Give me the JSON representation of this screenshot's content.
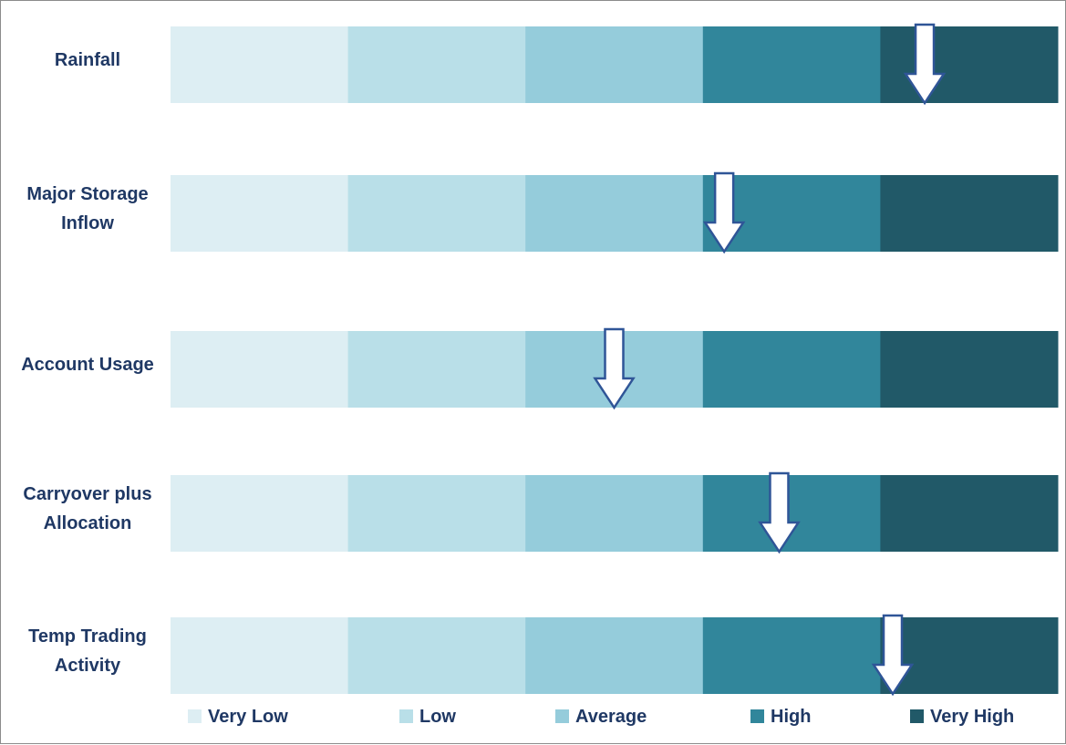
{
  "chart_data": {
    "type": "bar",
    "orientation": "horizontal-stacked",
    "title": "",
    "xlabel": "",
    "ylabel": "",
    "bands": [
      {
        "name": "Very Low",
        "color": "#ddeef3"
      },
      {
        "name": "Low",
        "color": "#b9dfe8"
      },
      {
        "name": "Average",
        "color": "#95ccdb"
      },
      {
        "name": "High",
        "color": "#31869b"
      },
      {
        "name": "Very High",
        "color": "#215968"
      }
    ],
    "categories": [
      {
        "label_lines": [
          "Rainfall"
        ],
        "indicator_band": 4.25
      },
      {
        "label_lines": [
          "Major Storage",
          "Inflow"
        ],
        "indicator_band": 3.12
      },
      {
        "label_lines": [
          "Account Usage"
        ],
        "indicator_band": 2.5
      },
      {
        "label_lines": [
          "Carryover plus",
          "Allocation"
        ],
        "indicator_band": 3.43
      },
      {
        "label_lines": [
          "Temp Trading",
          "Activity"
        ],
        "indicator_band": 4.07
      }
    ],
    "legend_position": "bottom",
    "grid": false
  }
}
